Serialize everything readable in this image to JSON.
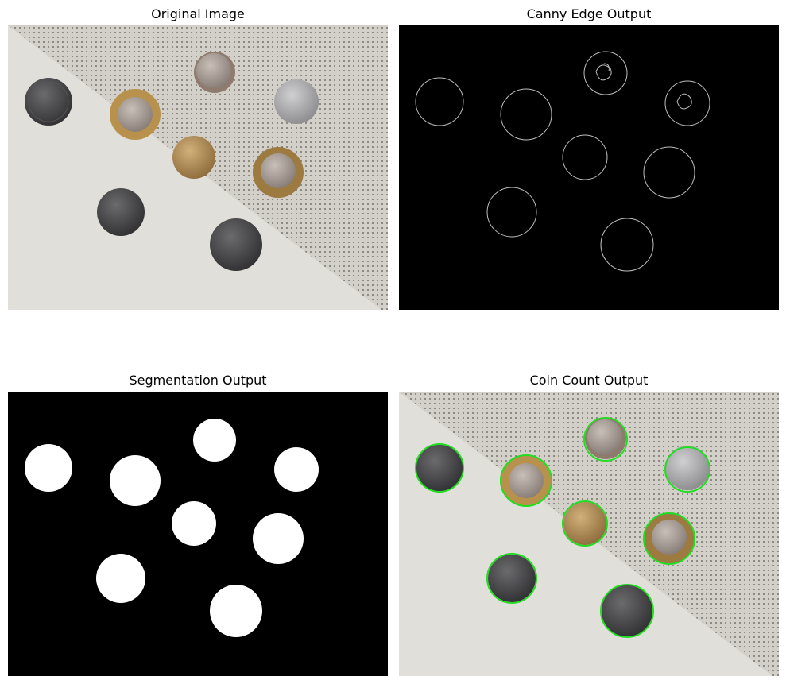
{
  "panels": {
    "original": {
      "title": "Original Image"
    },
    "canny": {
      "title": "Canny Edge Output"
    },
    "segmentation": {
      "title": "Segmentation Output"
    },
    "count": {
      "title": "Coin Count Output"
    }
  },
  "colors": {
    "background_light": "#e3e1dc",
    "background_shadow": "#cfcbc3",
    "dot_pattern": "#3a3a32",
    "coin_dark": "#4a4a4c",
    "coin_silver": "#a8a8aa",
    "coin_gold": "#b4915a",
    "coin_bimetal_ring": "#b8924d",
    "coin_bimetal_center": "#a8a09a",
    "edge_line": "#bdbdbd",
    "segment_fill": "#ffffff",
    "panel_black": "#000000",
    "detection_outline": "#22dd22"
  },
  "coin_count": 8
}
